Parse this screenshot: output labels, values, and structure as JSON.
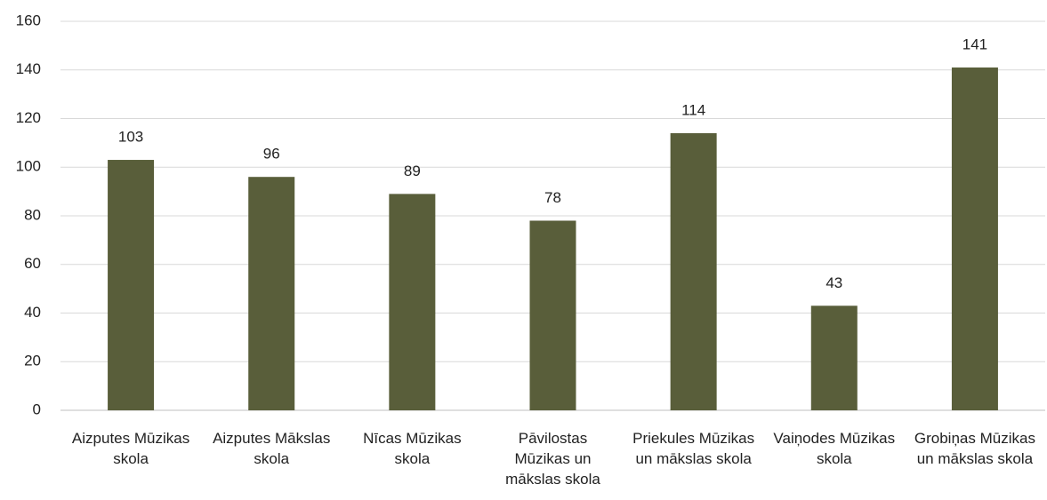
{
  "chart_data": {
    "type": "bar",
    "categories": [
      "Aizputes Mūzikas skola",
      "Aizputes Mākslas skola",
      "Nīcas Mūzikas skola",
      "Pāvilostas Mūzikas un mākslas skola",
      "Priekules Mūzikas un mākslas skola",
      "Vaiņodes Mūzikas skola",
      "Grobiņas Mūzikas un mākslas skola"
    ],
    "values": [
      103,
      96,
      89,
      78,
      114,
      43,
      141
    ],
    "color": "#595e3a",
    "ylim": [
      0,
      160
    ],
    "yticks": [
      0,
      20,
      40,
      60,
      80,
      100,
      120,
      140,
      160
    ],
    "grid": true
  }
}
